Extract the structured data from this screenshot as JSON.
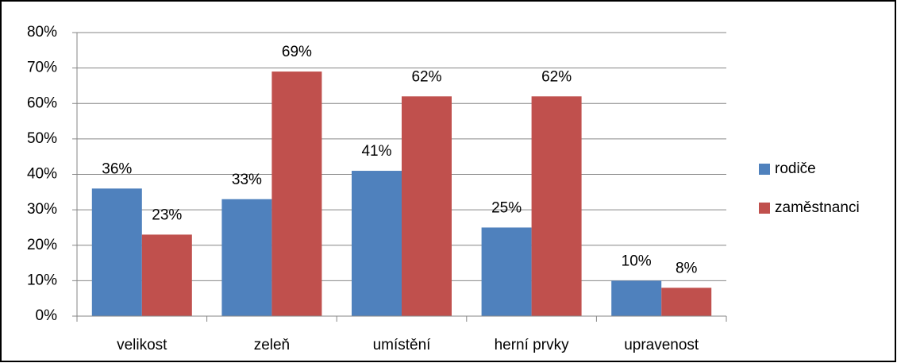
{
  "chart_data": {
    "type": "bar",
    "categories": [
      "velikost",
      "zeleň",
      "umístění",
      "herní prvky",
      "upravenost"
    ],
    "series": [
      {
        "name": "rodiče",
        "color": "#4f81bd",
        "values": [
          36,
          33,
          41,
          25,
          10
        ],
        "value_labels": [
          "36%",
          "33%",
          "41%",
          "25%",
          "10%"
        ]
      },
      {
        "name": "zaměstnanci",
        "color": "#c0504d",
        "values": [
          23,
          69,
          62,
          62,
          8
        ],
        "value_labels": [
          "23%",
          "69%",
          "62%",
          "62%",
          "8%"
        ]
      }
    ],
    "ylim": [
      0,
      80
    ],
    "yticks": [
      {
        "value": 0,
        "label": "0%"
      },
      {
        "value": 10,
        "label": "10%"
      },
      {
        "value": 20,
        "label": "20%"
      },
      {
        "value": 30,
        "label": "30%"
      },
      {
        "value": 40,
        "label": "40%"
      },
      {
        "value": 50,
        "label": "50%"
      },
      {
        "value": 60,
        "label": "60%"
      },
      {
        "value": 70,
        "label": "70%"
      },
      {
        "value": 80,
        "label": "80%"
      }
    ],
    "grid": true,
    "legend": "right"
  }
}
